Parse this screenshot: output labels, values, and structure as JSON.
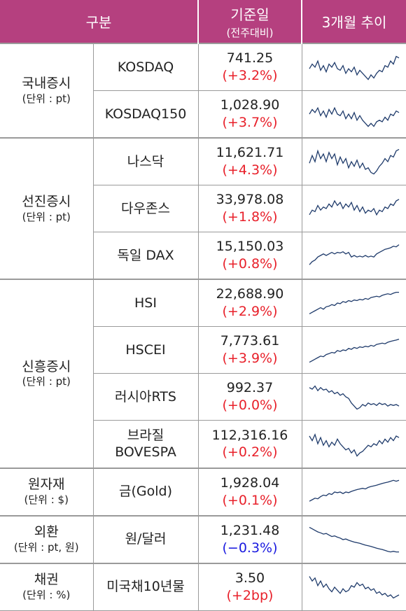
{
  "header": {
    "col1": "구분",
    "col2_main": "기준일",
    "col2_sub": "(전주대비)",
    "col3": "3개월 추이"
  },
  "groups": [
    {
      "name": "국내증시",
      "unit": "(단위 : pt)",
      "rows": [
        {
          "name": "KOSDAQ",
          "value": "741.25",
          "change": "(+3.2%)",
          "trend": [
            0.45,
            0.6,
            0.5,
            0.7,
            0.4,
            0.55,
            0.35,
            0.6,
            0.5,
            0.65,
            0.45,
            0.4,
            0.55,
            0.3,
            0.45,
            0.35,
            0.5,
            0.25,
            0.4,
            0.3,
            0.2,
            0.1,
            0.25,
            0.15,
            0.3,
            0.4,
            0.35,
            0.55,
            0.5,
            0.7,
            0.6,
            0.85,
            0.8
          ]
        },
        {
          "name": "KOSDAQ150",
          "value": "1,028.90",
          "change": "(+3.7%)",
          "trend": [
            0.5,
            0.65,
            0.55,
            0.7,
            0.45,
            0.6,
            0.4,
            0.65,
            0.5,
            0.7,
            0.5,
            0.45,
            0.6,
            0.35,
            0.5,
            0.35,
            0.55,
            0.3,
            0.45,
            0.3,
            0.2,
            0.1,
            0.2,
            0.1,
            0.25,
            0.3,
            0.25,
            0.4,
            0.3,
            0.5,
            0.45,
            0.6,
            0.55
          ]
        }
      ]
    },
    {
      "name": "선진증시",
      "unit": "(단위 : pt)",
      "rows": [
        {
          "name": "나스닥",
          "value": "11,621.71",
          "change": "(+4.3%)",
          "trend": [
            0.45,
            0.7,
            0.5,
            0.85,
            0.6,
            0.75,
            0.5,
            0.8,
            0.6,
            0.75,
            0.4,
            0.65,
            0.45,
            0.6,
            0.3,
            0.5,
            0.35,
            0.55,
            0.3,
            0.45,
            0.25,
            0.3,
            0.15,
            0.1,
            0.2,
            0.35,
            0.45,
            0.6,
            0.5,
            0.7,
            0.65,
            0.85,
            0.9
          ]
        },
        {
          "name": "다우존스",
          "value": "33,978.08",
          "change": "(+1.8%)",
          "trend": [
            0.3,
            0.45,
            0.4,
            0.6,
            0.45,
            0.55,
            0.5,
            0.65,
            0.55,
            0.75,
            0.6,
            0.7,
            0.5,
            0.65,
            0.55,
            0.7,
            0.45,
            0.6,
            0.4,
            0.55,
            0.35,
            0.45,
            0.4,
            0.5,
            0.3,
            0.45,
            0.4,
            0.55,
            0.5,
            0.65,
            0.6,
            0.75,
            0.8
          ]
        },
        {
          "name": "독일 DAX",
          "value": "15,150.03",
          "change": "(+0.8%)",
          "trend": [
            0.2,
            0.3,
            0.35,
            0.45,
            0.5,
            0.55,
            0.5,
            0.55,
            0.6,
            0.55,
            0.6,
            0.58,
            0.62,
            0.55,
            0.6,
            0.45,
            0.5,
            0.45,
            0.48,
            0.45,
            0.5,
            0.45,
            0.48,
            0.45,
            0.55,
            0.6,
            0.65,
            0.7,
            0.72,
            0.75,
            0.8,
            0.78,
            0.85
          ]
        }
      ]
    },
    {
      "name": "신흥증시",
      "unit": "(단위 : pt)",
      "rows": [
        {
          "name": "HSI",
          "value": "22,688.90",
          "change": "(+2.9%)",
          "trend": [
            0.15,
            0.2,
            0.25,
            0.3,
            0.35,
            0.3,
            0.38,
            0.4,
            0.45,
            0.42,
            0.5,
            0.48,
            0.55,
            0.52,
            0.58,
            0.55,
            0.6,
            0.58,
            0.62,
            0.6,
            0.65,
            0.62,
            0.68,
            0.7,
            0.72,
            0.7,
            0.75,
            0.78,
            0.8,
            0.78,
            0.82,
            0.85,
            0.85
          ]
        },
        {
          "name": "HSCEI",
          "value": "7,773.61",
          "change": "(+3.9%)",
          "trend": [
            0.1,
            0.15,
            0.2,
            0.25,
            0.3,
            0.28,
            0.35,
            0.38,
            0.42,
            0.4,
            0.48,
            0.45,
            0.5,
            0.48,
            0.55,
            0.52,
            0.58,
            0.55,
            0.6,
            0.58,
            0.62,
            0.6,
            0.65,
            0.62,
            0.68,
            0.7,
            0.72,
            0.7,
            0.75,
            0.78,
            0.8,
            0.82,
            0.85
          ]
        },
        {
          "name": "러시아RTS",
          "value": "992.37",
          "change": "(+0.0%)",
          "trend": [
            0.8,
            0.75,
            0.85,
            0.7,
            0.8,
            0.72,
            0.75,
            0.65,
            0.7,
            0.6,
            0.65,
            0.55,
            0.6,
            0.5,
            0.45,
            0.3,
            0.2,
            0.1,
            0.15,
            0.25,
            0.2,
            0.3,
            0.25,
            0.28,
            0.22,
            0.3,
            0.25,
            0.28,
            0.2,
            0.25,
            0.22,
            0.25,
            0.2
          ]
        },
        {
          "name": "브라질\nBOVESPA",
          "value": "112,316.16",
          "change": "(+0.2%)",
          "trend": [
            0.75,
            0.6,
            0.8,
            0.5,
            0.7,
            0.45,
            0.6,
            0.4,
            0.55,
            0.45,
            0.65,
            0.5,
            0.4,
            0.3,
            0.35,
            0.2,
            0.3,
            0.1,
            0.2,
            0.25,
            0.35,
            0.45,
            0.4,
            0.5,
            0.45,
            0.6,
            0.5,
            0.65,
            0.55,
            0.7,
            0.6,
            0.75,
            0.7
          ]
        }
      ]
    },
    {
      "name": "원자재",
      "unit": "(단위 : $)",
      "rows": [
        {
          "name": "금(Gold)",
          "value": "1,928.04",
          "change": "(+0.1%)",
          "trend": [
            0.2,
            0.25,
            0.3,
            0.28,
            0.35,
            0.4,
            0.38,
            0.45,
            0.42,
            0.5,
            0.48,
            0.5,
            0.45,
            0.5,
            0.48,
            0.52,
            0.55,
            0.58,
            0.6,
            0.62,
            0.6,
            0.65,
            0.68,
            0.7,
            0.72,
            0.75,
            0.78,
            0.8,
            0.82,
            0.85,
            0.88,
            0.85,
            0.88
          ]
        }
      ]
    },
    {
      "name": "외환",
      "unit": "(단위 : pt, 원)",
      "rows": [
        {
          "name": "원/달러",
          "value": "1,231.48",
          "change": "(−0.3%)",
          "negative": true,
          "trend": [
            0.9,
            0.85,
            0.8,
            0.75,
            0.72,
            0.68,
            0.7,
            0.65,
            0.6,
            0.62,
            0.58,
            0.55,
            0.5,
            0.52,
            0.48,
            0.45,
            0.42,
            0.4,
            0.38,
            0.35,
            0.32,
            0.3,
            0.28,
            0.25,
            0.22,
            0.2,
            0.18,
            0.15,
            0.12,
            0.1,
            0.12,
            0.1,
            0.1
          ]
        }
      ]
    },
    {
      "name": "채권",
      "unit": "(단위 : %)",
      "rows": [
        {
          "name": "미국채10년물",
          "value": "3.50",
          "change": "(+2bp)",
          "trend": [
            0.85,
            0.7,
            0.8,
            0.55,
            0.7,
            0.5,
            0.6,
            0.45,
            0.35,
            0.5,
            0.4,
            0.3,
            0.45,
            0.35,
            0.4,
            0.55,
            0.5,
            0.65,
            0.55,
            0.6,
            0.45,
            0.5,
            0.4,
            0.45,
            0.3,
            0.35,
            0.25,
            0.3,
            0.2,
            0.25,
            0.15,
            0.2,
            0.25
          ]
        }
      ]
    }
  ]
}
